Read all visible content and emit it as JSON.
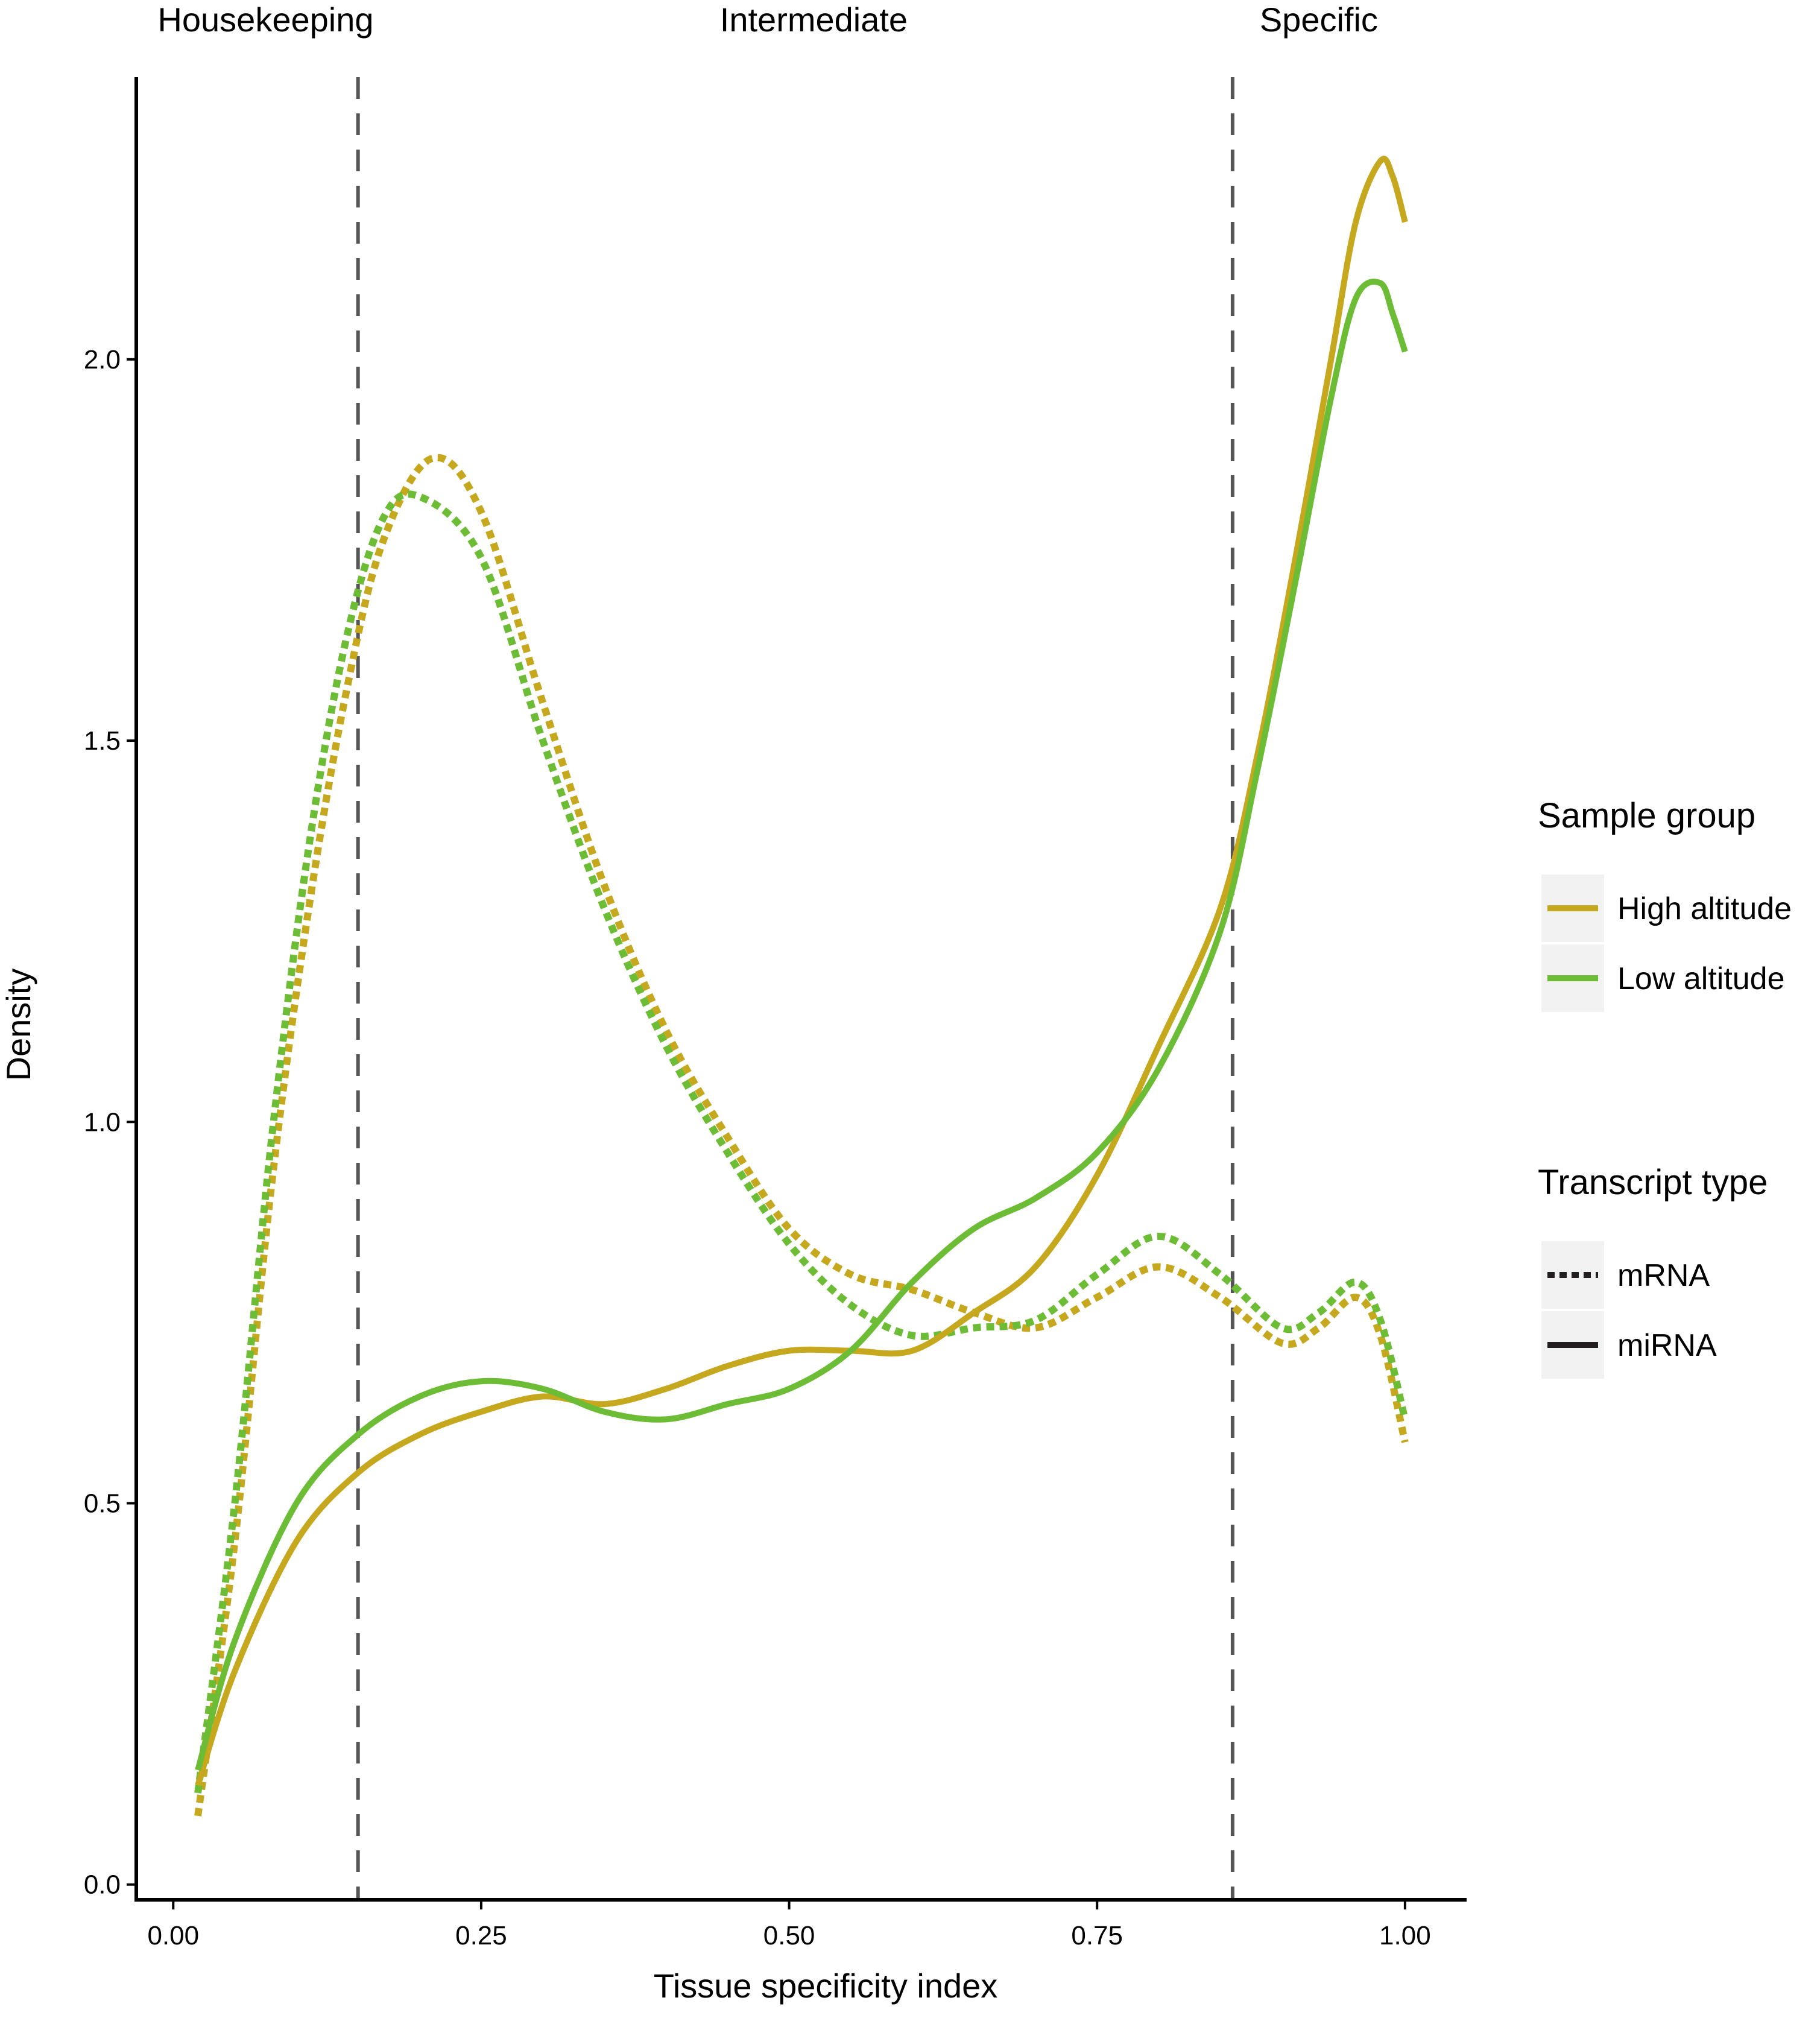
{
  "chart_data": {
    "type": "line",
    "xlabel": "Tissue specificity index",
    "ylabel": "Density",
    "xlim": [
      -0.03,
      1.05
    ],
    "ylim": [
      -0.02,
      2.37
    ],
    "xticks": [
      0.0,
      0.25,
      0.5,
      0.75,
      1.0
    ],
    "xtick_labels": [
      "0.00",
      "0.25",
      "0.50",
      "0.75",
      "1.00"
    ],
    "yticks": [
      0.0,
      0.5,
      1.0,
      1.5,
      2.0
    ],
    "ytick_labels": [
      "0.0",
      "0.5",
      "1.0",
      "1.5",
      "2.0"
    ],
    "grid": false,
    "vlines": [
      0.15,
      0.86
    ],
    "regions": [
      {
        "label": "Housekeeping",
        "x": 0.075
      },
      {
        "label": "Intermediate",
        "x": 0.52
      },
      {
        "label": "Specific",
        "x": 0.93
      }
    ],
    "colors": {
      "High altitude": "#c6a81e",
      "Low altitude": "#6cbd35"
    },
    "series": [
      {
        "name": "High altitude",
        "transcript_type": "mRNA",
        "color": "#c6a81e",
        "dash": "dotted",
        "points": [
          [
            0.02,
            0.09
          ],
          [
            0.05,
            0.45
          ],
          [
            0.08,
            0.92
          ],
          [
            0.11,
            1.28
          ],
          [
            0.14,
            1.56
          ],
          [
            0.17,
            1.76
          ],
          [
            0.21,
            1.87
          ],
          [
            0.25,
            1.8
          ],
          [
            0.3,
            1.55
          ],
          [
            0.35,
            1.31
          ],
          [
            0.4,
            1.12
          ],
          [
            0.45,
            0.98
          ],
          [
            0.5,
            0.86
          ],
          [
            0.55,
            0.8
          ],
          [
            0.6,
            0.78
          ],
          [
            0.65,
            0.75
          ],
          [
            0.7,
            0.73
          ],
          [
            0.75,
            0.77
          ],
          [
            0.8,
            0.81
          ],
          [
            0.85,
            0.77
          ],
          [
            0.9,
            0.71
          ],
          [
            0.93,
            0.73
          ],
          [
            0.96,
            0.77
          ],
          [
            0.98,
            0.72
          ],
          [
            1.0,
            0.58
          ]
        ]
      },
      {
        "name": "Low altitude",
        "transcript_type": "mRNA",
        "color": "#6cbd35",
        "dash": "dotted",
        "points": [
          [
            0.02,
            0.12
          ],
          [
            0.05,
            0.5
          ],
          [
            0.08,
            0.98
          ],
          [
            0.11,
            1.36
          ],
          [
            0.14,
            1.63
          ],
          [
            0.17,
            1.79
          ],
          [
            0.2,
            1.82
          ],
          [
            0.25,
            1.74
          ],
          [
            0.3,
            1.5
          ],
          [
            0.35,
            1.28
          ],
          [
            0.4,
            1.1
          ],
          [
            0.45,
            0.96
          ],
          [
            0.5,
            0.84
          ],
          [
            0.55,
            0.76
          ],
          [
            0.6,
            0.72
          ],
          [
            0.65,
            0.73
          ],
          [
            0.7,
            0.74
          ],
          [
            0.75,
            0.8
          ],
          [
            0.8,
            0.85
          ],
          [
            0.85,
            0.8
          ],
          [
            0.9,
            0.73
          ],
          [
            0.93,
            0.75
          ],
          [
            0.96,
            0.79
          ],
          [
            0.98,
            0.74
          ],
          [
            1.0,
            0.61
          ]
        ]
      },
      {
        "name": "High altitude",
        "transcript_type": "miRNA",
        "color": "#c6a81e",
        "dash": "solid",
        "points": [
          [
            0.02,
            0.13
          ],
          [
            0.05,
            0.28
          ],
          [
            0.1,
            0.45
          ],
          [
            0.15,
            0.54
          ],
          [
            0.2,
            0.59
          ],
          [
            0.25,
            0.62
          ],
          [
            0.3,
            0.64
          ],
          [
            0.35,
            0.63
          ],
          [
            0.4,
            0.65
          ],
          [
            0.45,
            0.68
          ],
          [
            0.5,
            0.7
          ],
          [
            0.55,
            0.7
          ],
          [
            0.6,
            0.7
          ],
          [
            0.65,
            0.75
          ],
          [
            0.7,
            0.81
          ],
          [
            0.75,
            0.93
          ],
          [
            0.8,
            1.1
          ],
          [
            0.85,
            1.28
          ],
          [
            0.88,
            1.48
          ],
          [
            0.91,
            1.73
          ],
          [
            0.94,
            2.0
          ],
          [
            0.96,
            2.18
          ],
          [
            0.98,
            2.26
          ],
          [
            0.99,
            2.24
          ],
          [
            1.0,
            2.18
          ]
        ]
      },
      {
        "name": "Low altitude",
        "transcript_type": "miRNA",
        "color": "#6cbd35",
        "dash": "solid",
        "points": [
          [
            0.02,
            0.15
          ],
          [
            0.05,
            0.32
          ],
          [
            0.1,
            0.5
          ],
          [
            0.15,
            0.59
          ],
          [
            0.2,
            0.64
          ],
          [
            0.25,
            0.66
          ],
          [
            0.3,
            0.65
          ],
          [
            0.35,
            0.62
          ],
          [
            0.4,
            0.61
          ],
          [
            0.45,
            0.63
          ],
          [
            0.5,
            0.65
          ],
          [
            0.55,
            0.7
          ],
          [
            0.6,
            0.79
          ],
          [
            0.65,
            0.86
          ],
          [
            0.7,
            0.9
          ],
          [
            0.75,
            0.96
          ],
          [
            0.8,
            1.07
          ],
          [
            0.85,
            1.25
          ],
          [
            0.88,
            1.46
          ],
          [
            0.91,
            1.7
          ],
          [
            0.94,
            1.95
          ],
          [
            0.96,
            2.08
          ],
          [
            0.98,
            2.1
          ],
          [
            0.99,
            2.06
          ],
          [
            1.0,
            2.01
          ]
        ]
      }
    ],
    "legend": {
      "placement": "right",
      "groups": [
        {
          "title": "Sample group",
          "entries": [
            {
              "label": "High altitude",
              "color": "#c6a81e",
              "dash": "solid"
            },
            {
              "label": "Low altitude",
              "color": "#6cbd35",
              "dash": "solid"
            }
          ]
        },
        {
          "title": "Transcript  type",
          "entries": [
            {
              "label": "mRNA",
              "color": "#231f20",
              "dash": "dotted"
            },
            {
              "label": "miRNA",
              "color": "#231f20",
              "dash": "solid"
            }
          ]
        }
      ]
    }
  }
}
